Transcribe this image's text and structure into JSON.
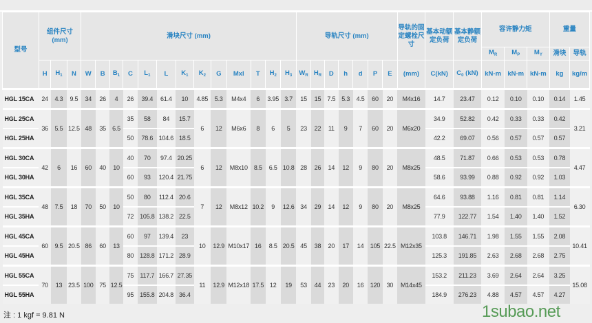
{
  "header": {
    "model": "型号",
    "assembly": "组件尺寸 (mm)",
    "block": "滑块尺寸 (mm)",
    "rail": "导轨尺寸 (mm)",
    "bolt": "导轨的固定螺栓尺寸",
    "dynamic": "基本动额定负荷",
    "static": "基本静额定负荷",
    "moment": "容许静力矩",
    "weight": "重量",
    "moment_cols": [
      {
        "base": "M",
        "sub": "R"
      },
      {
        "base": "M",
        "sub": "P"
      },
      {
        "base": "M",
        "sub": "Y"
      }
    ],
    "weight_cols": [
      "滑块",
      "导轨"
    ],
    "units": [
      {
        "base": "H",
        "sub": ""
      },
      {
        "base": "H",
        "sub": "1"
      },
      {
        "base": "N",
        "sub": ""
      },
      {
        "base": "W",
        "sub": ""
      },
      {
        "base": "B",
        "sub": ""
      },
      {
        "base": "B",
        "sub": "1"
      },
      {
        "base": "C",
        "sub": ""
      },
      {
        "base": "L",
        "sub": "1"
      },
      {
        "base": "L",
        "sub": ""
      },
      {
        "base": "K",
        "sub": "1"
      },
      {
        "base": "K",
        "sub": "2"
      },
      {
        "base": "G",
        "sub": ""
      },
      {
        "base": "Mxl",
        "sub": ""
      },
      {
        "base": "T",
        "sub": ""
      },
      {
        "base": "H",
        "sub": "2"
      },
      {
        "base": "H",
        "sub": "3"
      },
      {
        "base": "W",
        "sub": "R"
      },
      {
        "base": "H",
        "sub": "R"
      },
      {
        "base": "D",
        "sub": ""
      },
      {
        "base": "h",
        "sub": ""
      },
      {
        "base": "d",
        "sub": ""
      },
      {
        "base": "P",
        "sub": ""
      },
      {
        "base": "E",
        "sub": ""
      },
      {
        "base": "(mm)",
        "sub": ""
      },
      {
        "base": "C(kN)",
        "sub": ""
      },
      {
        "base": "C",
        "sub": "0",
        "tail": " (kN)"
      },
      {
        "base": "kN-m",
        "sub": ""
      },
      {
        "base": "kN-m",
        "sub": ""
      },
      {
        "base": "kN-m",
        "sub": ""
      },
      {
        "base": "kg",
        "sub": ""
      },
      {
        "base": "kg/m",
        "sub": ""
      }
    ]
  },
  "groups": [
    {
      "shared": {
        "H": "24",
        "H1": "4.3",
        "N": "9.5",
        "W": "34",
        "B": "26",
        "B1": "4",
        "K2": "4.85",
        "G": "5.3",
        "Mxl": "M4x4",
        "T": "6",
        "H2": "3.95",
        "H3": "3.7",
        "WR": "15",
        "HR": "15",
        "D": "7.5",
        "h": "5.3",
        "d": "4.5",
        "P": "60",
        "E": "20",
        "bolt": "M4x16",
        "wRail": "1.45"
      },
      "rows": [
        {
          "model": "HGL 15CA",
          "C": "26",
          "L1": "39.4",
          "L": "61.4",
          "K1": "10",
          "Cdyn": "14.7",
          "C0": "23.47",
          "MR": "0.12",
          "MP": "0.10",
          "MY": "0.10",
          "wBlock": "0.14"
        }
      ]
    },
    {
      "shared": {
        "H": "36",
        "H1": "5.5",
        "N": "12.5",
        "W": "48",
        "B": "35",
        "B1": "6.5",
        "K2": "6",
        "G": "12",
        "Mxl": "M6x6",
        "T": "8",
        "H2": "6",
        "H3": "5",
        "WR": "23",
        "HR": "22",
        "D": "11",
        "h": "9",
        "d": "7",
        "P": "60",
        "E": "20",
        "bolt": "M6x20",
        "wRail": "3.21"
      },
      "rows": [
        {
          "model": "HGL 25CA",
          "C": "35",
          "L1": "58",
          "L": "84",
          "K1": "15.7",
          "Cdyn": "34.9",
          "C0": "52.82",
          "MR": "0.42",
          "MP": "0.33",
          "MY": "0.33",
          "wBlock": "0.42"
        },
        {
          "model": "HGL 25HA",
          "C": "50",
          "L1": "78.6",
          "L": "104.6",
          "K1": "18.5",
          "Cdyn": "42.2",
          "C0": "69.07",
          "MR": "0.56",
          "MP": "0.57",
          "MY": "0.57",
          "wBlock": "0.57"
        }
      ]
    },
    {
      "shared": {
        "H": "42",
        "H1": "6",
        "N": "16",
        "W": "60",
        "B": "40",
        "B1": "10",
        "K2": "6",
        "G": "12",
        "Mxl": "M8x10",
        "T": "8.5",
        "H2": "6.5",
        "H3": "10.8",
        "WR": "28",
        "HR": "26",
        "D": "14",
        "h": "12",
        "d": "9",
        "P": "80",
        "E": "20",
        "bolt": "M8x25",
        "wRail": "4.47"
      },
      "rows": [
        {
          "model": "HGL 30CA",
          "C": "40",
          "L1": "70",
          "L": "97.4",
          "K1": "20.25",
          "Cdyn": "48.5",
          "C0": "71.87",
          "MR": "0.66",
          "MP": "0.53",
          "MY": "0.53",
          "wBlock": "0.78"
        },
        {
          "model": "HGL 30HA",
          "C": "60",
          "L1": "93",
          "L": "120.4",
          "K1": "21.75",
          "Cdyn": "58.6",
          "C0": "93.99",
          "MR": "0.88",
          "MP": "0.92",
          "MY": "0.92",
          "wBlock": "1.03"
        }
      ]
    },
    {
      "shared": {
        "H": "48",
        "H1": "7.5",
        "N": "18",
        "W": "70",
        "B": "50",
        "B1": "10",
        "K2": "7",
        "G": "12",
        "Mxl": "M8x12",
        "T": "10.2",
        "H2": "9",
        "H3": "12.6",
        "WR": "34",
        "HR": "29",
        "D": "14",
        "h": "12",
        "d": "9",
        "P": "80",
        "E": "20",
        "bolt": "M8x25",
        "wRail": "6.30"
      },
      "rows": [
        {
          "model": "HGL 35CA",
          "C": "50",
          "L1": "80",
          "L": "112.4",
          "K1": "20.6",
          "Cdyn": "64.6",
          "C0": "93.88",
          "MR": "1.16",
          "MP": "0.81",
          "MY": "0.81",
          "wBlock": "1.14"
        },
        {
          "model": "HGL 35HA",
          "C": "72",
          "L1": "105.8",
          "L": "138.2",
          "K1": "22.5",
          "Cdyn": "77.9",
          "C0": "122.77",
          "MR": "1.54",
          "MP": "1.40",
          "MY": "1.40",
          "wBlock": "1.52"
        }
      ]
    },
    {
      "shared": {
        "H": "60",
        "H1": "9.5",
        "N": "20.5",
        "W": "86",
        "B": "60",
        "B1": "13",
        "K2": "10",
        "G": "12.9",
        "Mxl": "M10x17",
        "T": "16",
        "H2": "8.5",
        "H3": "20.5",
        "WR": "45",
        "HR": "38",
        "D": "20",
        "h": "17",
        "d": "14",
        "P": "105",
        "E": "22.5",
        "bolt": "M12x35",
        "wRail": "10.41"
      },
      "rows": [
        {
          "model": "HGL 45CA",
          "C": "60",
          "L1": "97",
          "L": "139.4",
          "K1": "23",
          "Cdyn": "103.8",
          "C0": "146.71",
          "MR": "1.98",
          "MP": "1.55",
          "MY": "1.55",
          "wBlock": "2.08"
        },
        {
          "model": "HGL 45HA",
          "C": "80",
          "L1": "128.8",
          "L": "171.2",
          "K1": "28.9",
          "Cdyn": "125.3",
          "C0": "191.85",
          "MR": "2.63",
          "MP": "2.68",
          "MY": "2.68",
          "wBlock": "2.75"
        }
      ]
    },
    {
      "shared": {
        "H": "70",
        "H1": "13",
        "N": "23.5",
        "W": "100",
        "B": "75",
        "B1": "12.5",
        "K2": "11",
        "G": "12.9",
        "Mxl": "M12x18",
        "T": "17.5",
        "H2": "12",
        "H3": "19",
        "WR": "53",
        "HR": "44",
        "D": "23",
        "h": "20",
        "d": "16",
        "P": "120",
        "E": "30",
        "bolt": "M14x45",
        "wRail": "15.08"
      },
      "rows": [
        {
          "model": "HGL 55CA",
          "C": "75",
          "L1": "117.7",
          "L": "166.7",
          "K1": "27.35",
          "Cdyn": "153.2",
          "C0": "211.23",
          "MR": "3.69",
          "MP": "2.64",
          "MY": "2.64",
          "wBlock": "3.25"
        },
        {
          "model": "HGL 55HA",
          "C": "95",
          "L1": "155.8",
          "L": "204.8",
          "K1": "36.4",
          "Cdyn": "184.9",
          "C0": "276.23",
          "MR": "4.88",
          "MP": "4.57",
          "MY": "4.57",
          "wBlock": "4.27"
        }
      ]
    }
  ],
  "note": "注 : 1 kgf = 9.81 N",
  "watermark": "1subao.net",
  "colors": {
    "header_text": "#2a84c2",
    "shaded": "#dadada",
    "cell": "#f0f0f0",
    "watermark": "#3c8c3c"
  }
}
